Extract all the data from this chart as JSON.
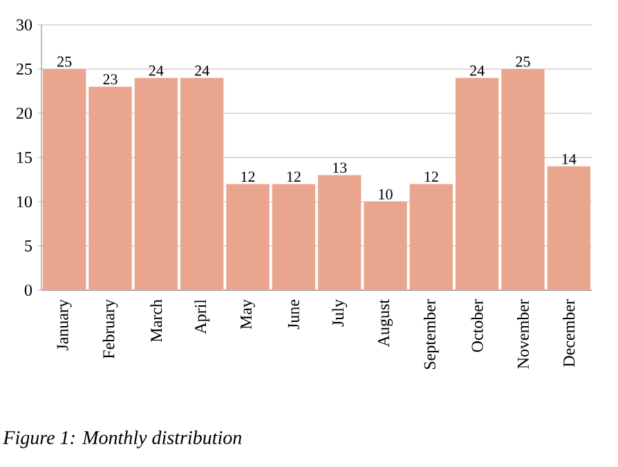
{
  "chart_data": {
    "type": "bar",
    "categories": [
      "January",
      "February",
      "March",
      "April",
      "May",
      "June",
      "July",
      "August",
      "September",
      "October",
      "November",
      "December"
    ],
    "values": [
      25,
      23,
      24,
      24,
      12,
      12,
      13,
      10,
      12,
      24,
      25,
      14
    ],
    "color": "#eaa58e",
    "ylim": [
      0,
      30
    ],
    "yticks": [
      0,
      5,
      10,
      15,
      20,
      25,
      30
    ],
    "grid": "y",
    "data_labels": true,
    "annotations": [
      "*Figure 1:* Monthly distribution"
    ]
  }
}
